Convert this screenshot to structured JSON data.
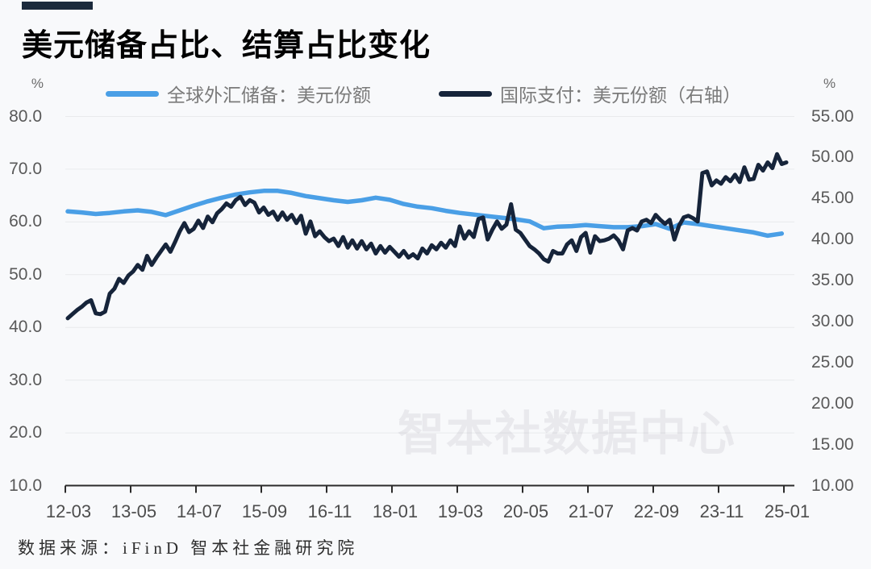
{
  "page": {
    "background": "#f8f9fb"
  },
  "header": {
    "title": "美元储备占比、结算占比变化",
    "accent_bar_color": "#1b2a3c"
  },
  "legend": [
    {
      "label": "全球外汇储备：美元份额",
      "color": "#4A9FE6"
    },
    {
      "label": "国际支付：美元份额（右轴）",
      "color": "#16243A"
    }
  ],
  "axes": {
    "left": {
      "unit": "%",
      "ticks": [
        "80.0",
        "70.0",
        "60.0",
        "50.0",
        "40.0",
        "30.0",
        "20.0",
        "10.0"
      ]
    },
    "right": {
      "unit": "%",
      "ticks": [
        "55.00",
        "50.00",
        "45.00",
        "40.00",
        "35.00",
        "30.00",
        "25.00",
        "20.00",
        "15.00",
        "10.00"
      ]
    },
    "x": {
      "ticks": [
        "12-03",
        "13-05",
        "14-07",
        "15-09",
        "16-11",
        "18-01",
        "19-03",
        "20-05",
        "21-07",
        "22-09",
        "23-11",
        "25-01"
      ]
    }
  },
  "watermark": "智本社数据中心",
  "footer": "数据来源：iFinD 智本社金融研究院",
  "chart_data": {
    "type": "line",
    "title": "美元储备占比、结算占比变化",
    "x_start": "2012-03",
    "x_end": "2025-01",
    "x_tick_labels": [
      "12-03",
      "13-05",
      "14-07",
      "15-09",
      "16-11",
      "18-01",
      "19-03",
      "20-05",
      "21-07",
      "22-09",
      "23-11",
      "25-01"
    ],
    "left_axis": {
      "label": "%",
      "range": [
        10,
        80
      ],
      "tick_step": 10
    },
    "right_axis": {
      "label": "%",
      "range": [
        10,
        55
      ],
      "tick_step": 5
    },
    "grid": true,
    "legend_position": "top",
    "series": [
      {
        "name": "全球外汇储备：美元份额",
        "axis": "left",
        "color": "#4A9FE6",
        "frequency": "quarterly",
        "start_month_offset": 0,
        "month_step": 3,
        "values": [
          62.0,
          61.8,
          61.5,
          61.7,
          62.0,
          62.2,
          61.9,
          61.3,
          62.2,
          63.1,
          63.9,
          64.6,
          65.2,
          65.6,
          65.9,
          65.9,
          65.5,
          64.9,
          64.5,
          64.1,
          63.8,
          64.1,
          64.6,
          64.2,
          63.4,
          62.9,
          62.6,
          62.1,
          61.7,
          61.4,
          61.1,
          60.8,
          60.5,
          60.1,
          58.8,
          59.1,
          59.2,
          59.4,
          59.2,
          59.0,
          59.0,
          59.2,
          59.6,
          58.7,
          59.9,
          59.6,
          59.2,
          58.8,
          58.4,
          58.0,
          57.4,
          57.8
        ]
      },
      {
        "name": "国际支付：美元份额（右轴）",
        "axis": "right",
        "color": "#16243A",
        "frequency": "monthly",
        "start_month_offset": 0,
        "month_step": 1,
        "values": [
          30.4,
          30.9,
          31.4,
          31.8,
          32.3,
          32.6,
          31.0,
          30.9,
          31.2,
          33.4,
          34.0,
          35.2,
          34.7,
          35.6,
          36.1,
          36.9,
          36.3,
          38.0,
          36.9,
          37.8,
          38.6,
          39.4,
          38.5,
          39.7,
          41.0,
          42.0,
          40.9,
          41.3,
          42.3,
          41.4,
          42.8,
          42.1,
          43.2,
          43.7,
          44.4,
          44.0,
          44.8,
          45.2,
          44.2,
          44.8,
          44.5,
          43.3,
          43.9,
          43.0,
          43.4,
          42.4,
          43.3,
          42.4,
          43.0,
          42.0,
          42.9,
          40.7,
          42.2,
          40.4,
          41.0,
          40.3,
          39.8,
          40.1,
          39.2,
          40.3,
          39.0,
          39.9,
          38.9,
          39.8,
          38.8,
          39.5,
          38.3,
          39.2,
          38.4,
          39.1,
          38.5,
          37.9,
          38.6,
          37.8,
          38.2,
          37.7,
          38.9,
          38.3,
          39.3,
          38.8,
          39.6,
          39.0,
          39.9,
          39.2,
          41.6,
          40.1,
          41.0,
          40.3,
          42.5,
          42.7,
          40.0,
          41.2,
          42.2,
          41.3,
          41.8,
          44.3,
          41.2,
          40.8,
          40.0,
          39.2,
          38.8,
          38.3,
          37.6,
          37.3,
          38.6,
          38.3,
          38.3,
          39.4,
          39.9,
          38.6,
          40.3,
          40.8,
          38.4,
          40.4,
          39.8,
          39.9,
          40.1,
          40.5,
          39.9,
          38.8,
          41.1,
          41.4,
          41.1,
          42.2,
          42.4,
          42.0,
          43.0,
          42.4,
          41.9,
          42.4,
          40.0,
          41.7,
          42.7,
          42.9,
          42.6,
          42.2,
          48.1,
          48.3,
          46.6,
          47.2,
          46.8,
          47.6,
          47.1,
          47.9,
          47.0,
          48.8,
          47.3,
          47.4,
          49.1,
          48.4,
          49.4,
          48.7,
          50.4,
          49.2,
          49.4
        ]
      }
    ]
  }
}
